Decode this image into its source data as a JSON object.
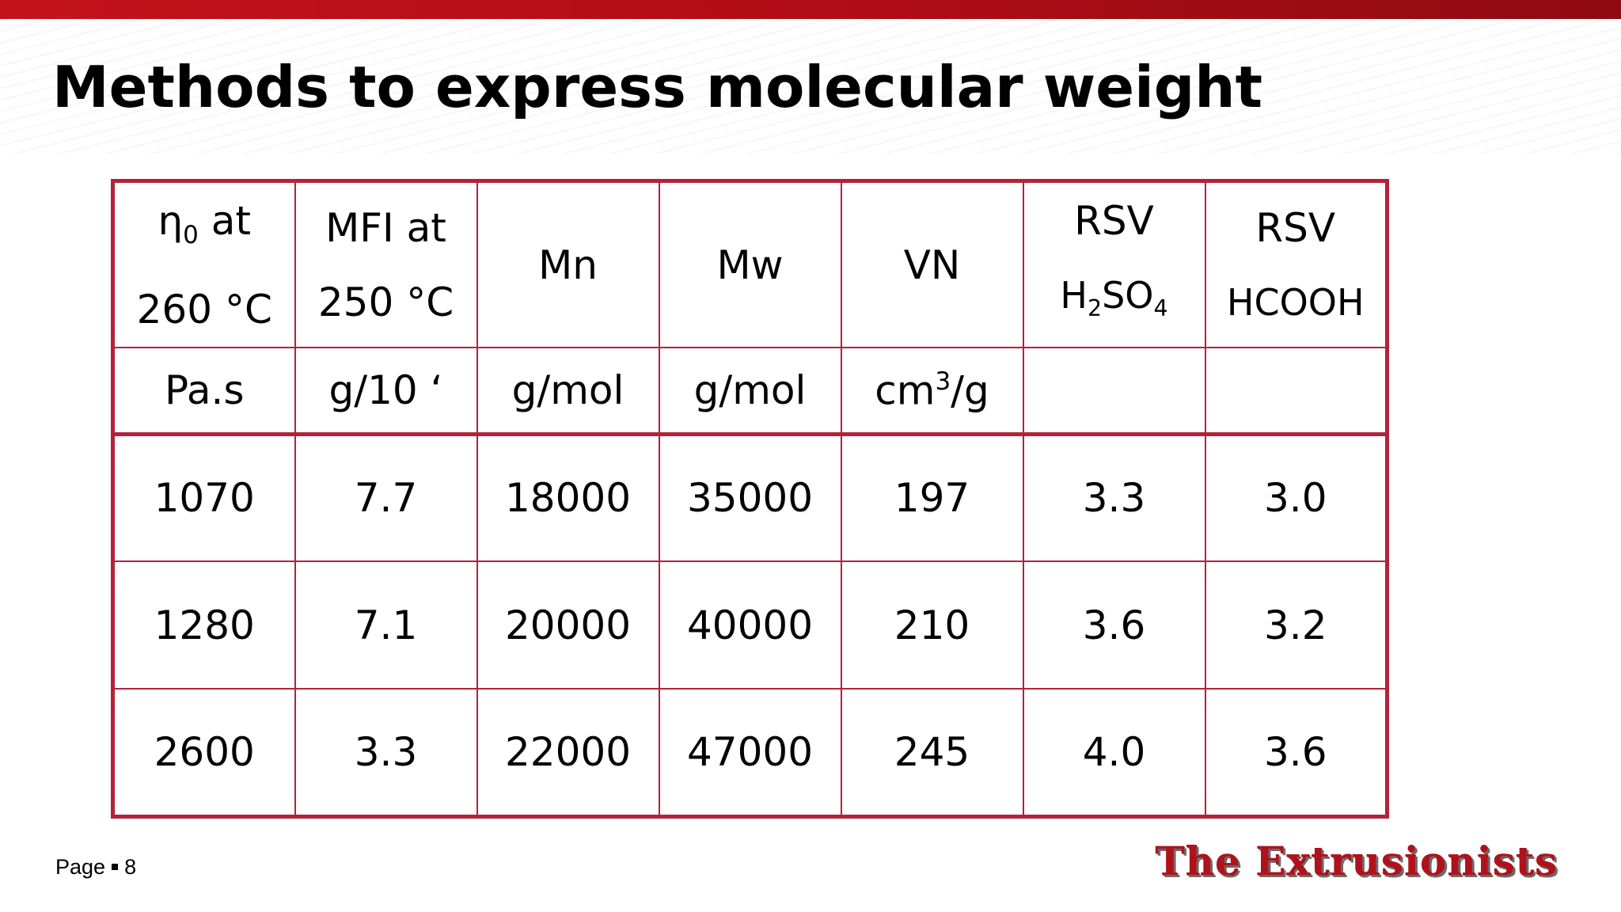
{
  "slide": {
    "title": "Methods to express molecular weight",
    "footer_page_label": "Page",
    "footer_page_number": "8",
    "logo_text": "The Extrusionists",
    "accent_color": "#b5213a",
    "top_bar_color": "#c4121a"
  },
  "table": {
    "headers": [
      {
        "main": "η",
        "sub": "0",
        "main_rest": " at",
        "line2": "260 °C"
      },
      {
        "line1": "MFI at",
        "line2": "250 °C"
      },
      {
        "line1": "Mn"
      },
      {
        "line1": "Mw"
      },
      {
        "line1": "VN"
      },
      {
        "line1": "RSV",
        "line2_a": "H",
        "line2_sub1": "2",
        "line2_b": "SO",
        "line2_sub2": "4"
      },
      {
        "line1": "RSV",
        "line2": "HCOOH"
      }
    ],
    "units": [
      "Pa.s",
      "g/10 ‘",
      "g/mol",
      "g/mol",
      {
        "a": "cm",
        "sup": "3",
        "b": "/g"
      },
      "",
      ""
    ],
    "rows": [
      [
        "1070",
        "7.7",
        "18000",
        "35000",
        "197",
        "3.3",
        "3.0"
      ],
      [
        "1280",
        "7.1",
        "20000",
        "40000",
        "210",
        "3.6",
        "3.2"
      ],
      [
        "2600",
        "3.3",
        "22000",
        "47000",
        "245",
        "4.0",
        "3.6"
      ]
    ]
  }
}
